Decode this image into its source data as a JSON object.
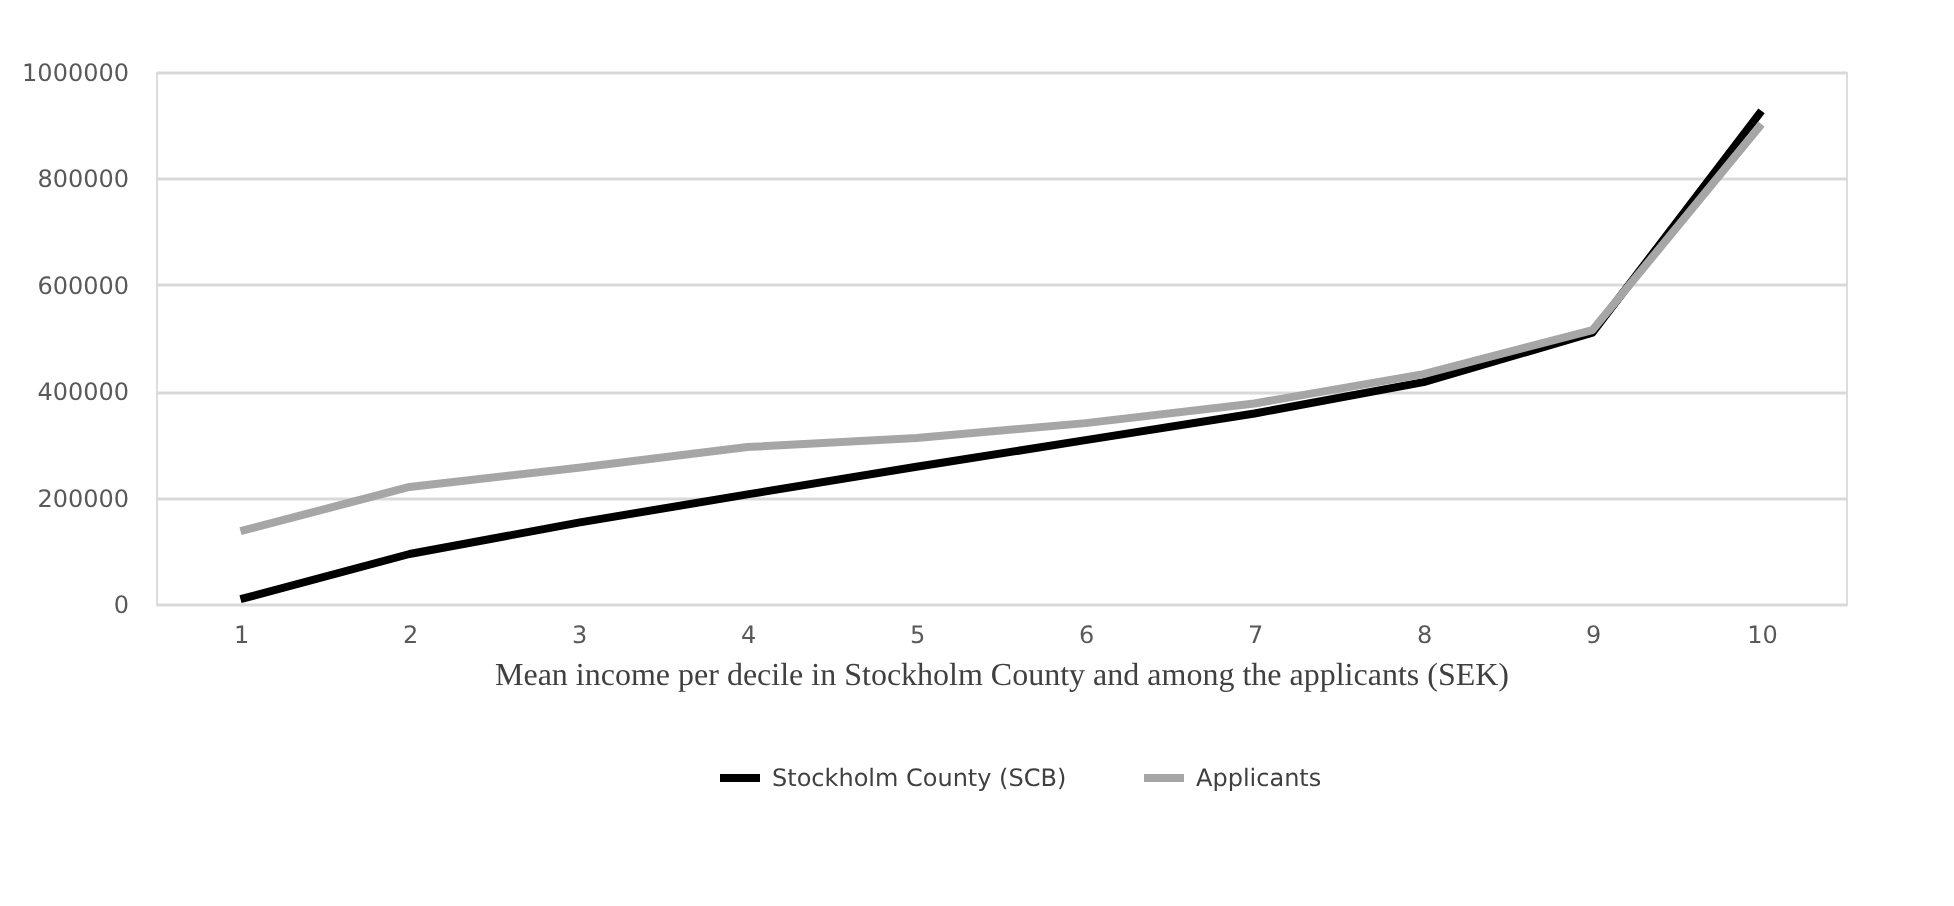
{
  "chart_data": {
    "type": "line",
    "xlabel": "Mean income per decile in Stockholm County and among the applicants  (SEK)",
    "categories": [
      "1",
      "2",
      "3",
      "4",
      "5",
      "6",
      "7",
      "8",
      "9",
      "10"
    ],
    "series": [
      {
        "name": "Stockholm County (SCB)",
        "color": "#000000",
        "values": [
          9000,
          94000,
          153000,
          206000,
          258000,
          308000,
          358000,
          417000,
          510000,
          927000
        ]
      },
      {
        "name": "Applicants",
        "color": "#a6a6a6",
        "values": [
          137000,
          220000,
          256000,
          295000,
          312000,
          340000,
          377000,
          432000,
          515000,
          902000
        ]
      }
    ],
    "ylim": [
      0,
      1000000
    ],
    "yticks": [
      0,
      200000,
      400000,
      600000,
      800000,
      1000000
    ],
    "grid": "y",
    "legend": "bottom",
    "marker": "none",
    "line_style": "solid"
  }
}
